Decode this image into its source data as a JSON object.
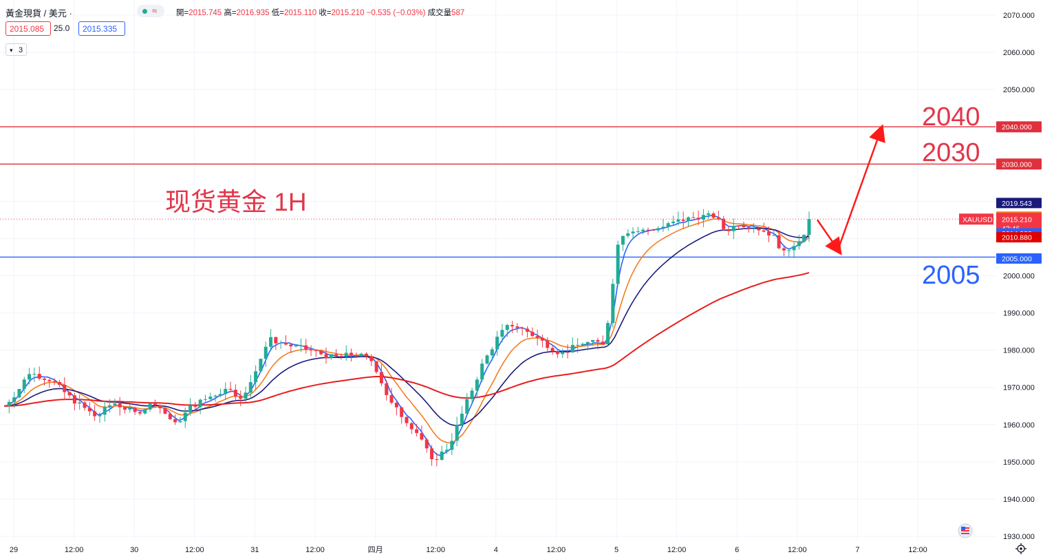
{
  "header": {
    "symbol_title": "黃金現貨 / 美元 ·",
    "ohlc": [
      {
        "k": "開=",
        "v": "2015.745"
      },
      {
        "k": "高=",
        "v": "2016.935"
      },
      {
        "k": "低=",
        "v": "2015.110"
      },
      {
        "k": "收=",
        "v": "2015.210"
      },
      {
        "k": "",
        "v": "−0.535 (−0.03%)"
      },
      {
        "k": "成交量",
        "v": "587"
      }
    ],
    "bid": "2015.085",
    "spread": "25.0",
    "ask": "2015.335",
    "indicator_count": "3",
    "status_icon": "≈"
  },
  "annotations": {
    "title": "现货黄金 1H",
    "level_2040": "2040",
    "level_2030": "2030",
    "level_2005": "2005"
  },
  "price_tags": {
    "t2040": "2040.000",
    "t2030": "2030.000",
    "t_ma_slow": "2019.543",
    "t_ma_mid": "2015.854",
    "t_symbol": "XAUUSD",
    "t_last": "2015.210",
    "t_countdown": "42:46",
    "t_ma_fast": "2014.888",
    "t_ma_long": "2010.880",
    "t2005": "2005.000"
  },
  "colors": {
    "up": "#22ab94",
    "down": "#f23645",
    "ma_fast": "#2962ff",
    "ma_mid": "#f57c1f",
    "ma_slow": "#1a1a7a",
    "ma_long": "#e81c1c",
    "line_red": "#e0303c",
    "line_blue": "#2962ff"
  },
  "chart_data": {
    "type": "candlestick",
    "symbol": "XAUUSD",
    "timeframe": "1H",
    "ylim": [
      1928,
      2073
    ],
    "yticks": [
      1930,
      1940,
      1950,
      1960,
      1970,
      1980,
      1990,
      2000,
      2010,
      2020,
      2030,
      2040,
      2050,
      2060,
      2070
    ],
    "ytick_labels": [
      "1930.000",
      "1940.000",
      "1950.000",
      "1960.000",
      "1970.000",
      "1980.000",
      "1990.000",
      "2000.000",
      "2010.000",
      "2020.000",
      "2030.000",
      "2040.000",
      "2050.000",
      "2060.000",
      "2070.000"
    ],
    "xticks": [
      "29",
      "12:00",
      "30",
      "12:00",
      "31",
      "12:00",
      "四月",
      "12:00",
      "4",
      "12:00",
      "5",
      "12:00",
      "6",
      "12:00",
      "7",
      "12:00"
    ],
    "horizontal_levels": [
      {
        "value": 2040,
        "color": "#e0303c"
      },
      {
        "value": 2030,
        "color": "#e0303c"
      },
      {
        "value": 2005,
        "color": "#2962ff"
      }
    ],
    "last_price": 2015.21,
    "anchors": [
      [
        0,
        1965
      ],
      [
        8,
        1969
      ],
      [
        15,
        1974
      ],
      [
        28,
        1972
      ],
      [
        40,
        1967
      ],
      [
        55,
        1962
      ],
      [
        65,
        1966
      ],
      [
        78,
        1963
      ],
      [
        90,
        1966
      ],
      [
        102,
        1960
      ],
      [
        112,
        1965
      ],
      [
        125,
        1968
      ],
      [
        135,
        1970
      ],
      [
        142,
        1966
      ],
      [
        150,
        1975
      ],
      [
        158,
        1983
      ],
      [
        172,
        1981
      ],
      [
        182,
        1980
      ],
      [
        196,
        1978
      ],
      [
        210,
        1979
      ],
      [
        220,
        1977
      ],
      [
        230,
        1966
      ],
      [
        240,
        1961
      ],
      [
        248,
        1957
      ],
      [
        255,
        1950
      ],
      [
        265,
        1954
      ],
      [
        275,
        1965
      ],
      [
        285,
        1976
      ],
      [
        295,
        1984
      ],
      [
        302,
        1987
      ],
      [
        312,
        1985
      ],
      [
        322,
        1982
      ],
      [
        332,
        1979
      ],
      [
        345,
        1982
      ],
      [
        358,
        1982
      ],
      [
        362,
        1994
      ],
      [
        366,
        2009
      ],
      [
        370,
        2012
      ],
      [
        380,
        2012
      ],
      [
        392,
        2013
      ],
      [
        404,
        2015
      ],
      [
        416,
        2016
      ],
      [
        424,
        2016
      ],
      [
        430,
        2012
      ],
      [
        438,
        2014
      ],
      [
        448,
        2013
      ],
      [
        458,
        2011
      ],
      [
        465,
        2006
      ],
      [
        472,
        2009
      ],
      [
        480,
        2012
      ]
    ],
    "ma_series": [
      {
        "period": "fast",
        "color": "#2962ff"
      },
      {
        "period": "mid",
        "color": "#f57c1f"
      },
      {
        "period": "slow",
        "color": "#1a1a7a"
      },
      {
        "period": "long",
        "color": "#e81c1c"
      }
    ],
    "projection": [
      {
        "from": 2015.0,
        "to": 2007.0
      },
      {
        "from": 2007.0,
        "to": 2039.0
      }
    ]
  }
}
